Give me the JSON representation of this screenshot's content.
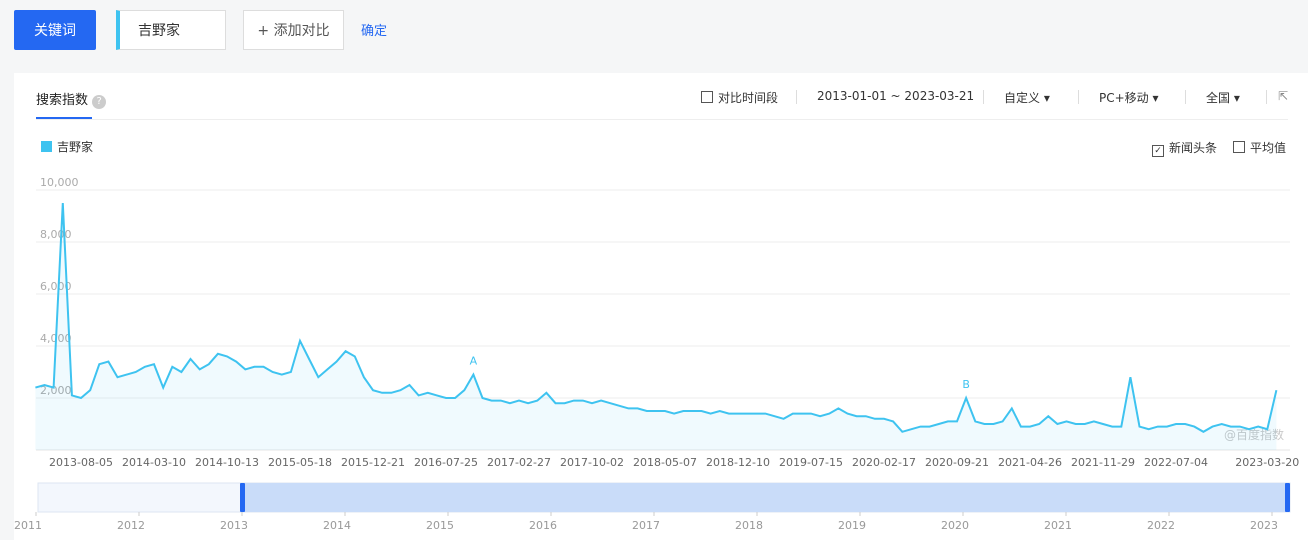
{
  "toolbar": {
    "keyword_button": "关键词",
    "keyword": "吉野家",
    "add_compare": "+ 添加对比",
    "confirm": "确定"
  },
  "panel": {
    "tab": "搜索指数",
    "compare_period": "对比时间段",
    "date_range": "2013-01-01 ~ 2023-03-21",
    "period_mode": "自定义",
    "device": "PC+移动",
    "region": "全国",
    "news_headlines": "新闻头条",
    "news_checked": true,
    "average": "平均值",
    "average_checked": false,
    "watermark": "@百度指数"
  },
  "chart_data": {
    "type": "line",
    "series": [
      {
        "name": "吉野家",
        "color": "#3ec3f0",
        "values": [
          2400,
          2500,
          2400,
          9500,
          2100,
          2000,
          2300,
          3300,
          3400,
          2800,
          2900,
          3000,
          3200,
          3300,
          2400,
          3200,
          3000,
          3500,
          3100,
          3300,
          3700,
          3600,
          3400,
          3100,
          3200,
          3200,
          3000,
          2900,
          3000,
          4200,
          3500,
          2800,
          3100,
          3400,
          3800,
          3600,
          2800,
          2300,
          2200,
          2200,
          2300,
          2500,
          2100,
          2200,
          2100,
          2000,
          2000,
          2300,
          2900,
          2000,
          1900,
          1900,
          1800,
          1900,
          1800,
          1900,
          2200,
          1800,
          1800,
          1900,
          1900,
          1800,
          1900,
          1800,
          1700,
          1600,
          1600,
          1500,
          1500,
          1500,
          1400,
          1500,
          1500,
          1500,
          1400,
          1500,
          1400,
          1400,
          1400,
          1400,
          1400,
          1300,
          1200,
          1400,
          1400,
          1400,
          1300,
          1400,
          1600,
          1400,
          1300,
          1300,
          1200,
          1200,
          1100,
          700,
          800,
          900,
          900,
          1000,
          1100,
          1100,
          2000,
          1100,
          1000,
          1000,
          1100,
          1600,
          900,
          900,
          1000,
          1300,
          1000,
          1100,
          1000,
          1000,
          1100,
          1000,
          900,
          900,
          2800,
          900,
          800,
          900,
          900,
          1000,
          1000,
          900,
          700,
          900,
          1000,
          900,
          900,
          800,
          900,
          800,
          2300
        ]
      }
    ],
    "categories": [
      null,
      null,
      null,
      null,
      null,
      "2013-08-05",
      null,
      null,
      null,
      null,
      null,
      null,
      null,
      "2014-03-10",
      null,
      null,
      null,
      null,
      null,
      null,
      null,
      "2014-10-13",
      null,
      null,
      null,
      null,
      null,
      null,
      null,
      "2015-05-18",
      null,
      null,
      null,
      null,
      null,
      null,
      null,
      "2015-12-21",
      null,
      null,
      null,
      null,
      null,
      null,
      null,
      "2016-07-25",
      null,
      null,
      null,
      null,
      null,
      null,
      null,
      "2017-02-27",
      null,
      null,
      null,
      null,
      null,
      null,
      null,
      "2017-10-02",
      null,
      null,
      null,
      null,
      null,
      null,
      null,
      "2018-05-07",
      null,
      null,
      null,
      null,
      null,
      null,
      null,
      "2018-12-10",
      null,
      null,
      null,
      null,
      null,
      null,
      null,
      "2019-07-15",
      null,
      null,
      null,
      null,
      null,
      null,
      null,
      "2020-02-17",
      null,
      null,
      null,
      null,
      null,
      null,
      null,
      "2020-09-21",
      null,
      null,
      null,
      null,
      null,
      null,
      null,
      "2021-04-26",
      null,
      null,
      null,
      null,
      null,
      null,
      null,
      "2021-11-29",
      null,
      null,
      null,
      null,
      null,
      null,
      null,
      "2022-07-04",
      null,
      null,
      null,
      null,
      null,
      null,
      null,
      null,
      null,
      "2023-03-20",
      null
    ],
    "ylim": [
      0,
      10000
    ],
    "yticks": [
      {
        "value": 2000,
        "label": "2,000"
      },
      {
        "value": 4000,
        "label": "4,000"
      },
      {
        "value": 6000,
        "label": "6,000"
      },
      {
        "value": 8000,
        "label": "8,000"
      },
      {
        "value": 10000,
        "label": "10,000"
      }
    ],
    "grid": true,
    "annotations": [
      {
        "text": "A",
        "index": 48
      },
      {
        "text": "B",
        "index": 102
      }
    ],
    "navigator": {
      "years": [
        2011,
        2012,
        2013,
        2014,
        2015,
        2016,
        2017,
        2018,
        2019,
        2020,
        2021,
        2022,
        2023
      ]
    }
  }
}
